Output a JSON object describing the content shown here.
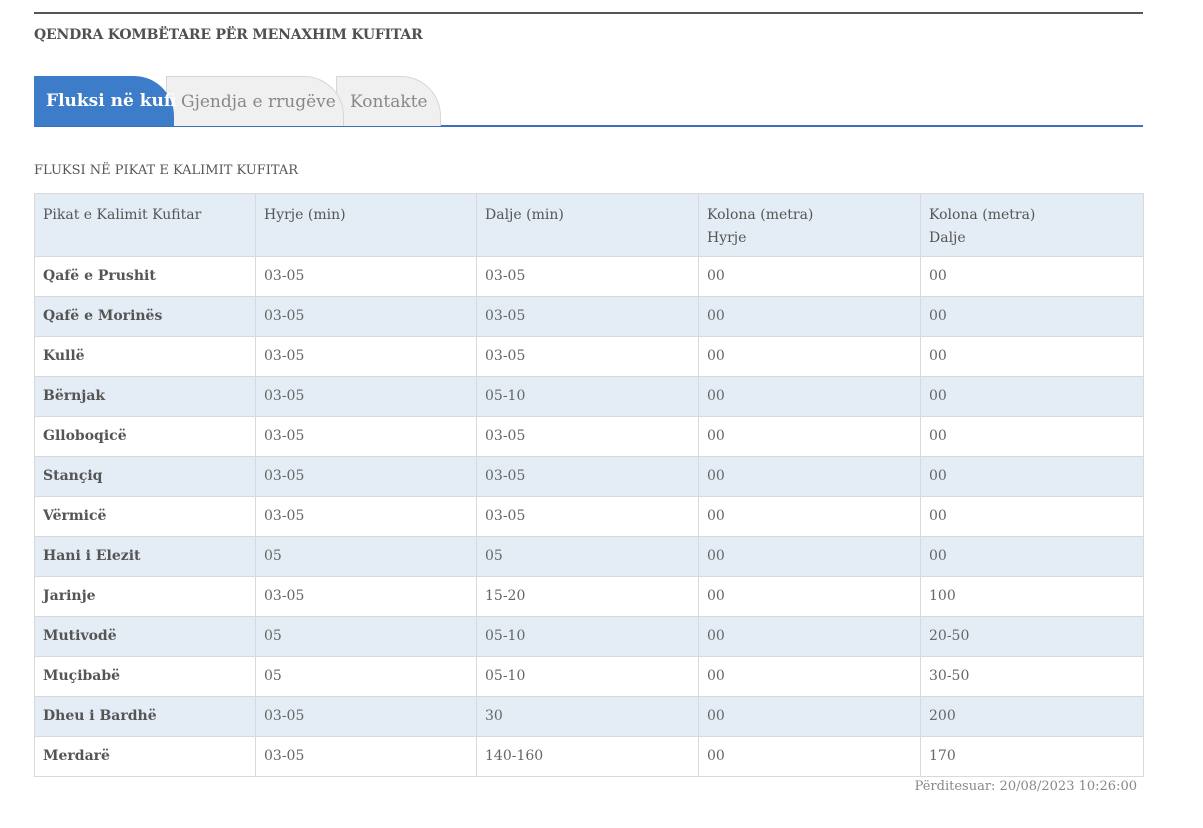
{
  "header": {
    "title": "QENDRA KOMBËTARE PËR MENAXHIM KUFITAR"
  },
  "tabs": [
    {
      "label": "Fluksi në kufi",
      "active": true
    },
    {
      "label": "Gjendja e rrugëve",
      "active": false
    },
    {
      "label": "Kontakte",
      "active": false
    }
  ],
  "section": {
    "title": "FLUKSI NË PIKAT E KALIMIT KUFITAR"
  },
  "table": {
    "headers": [
      {
        "line1": "Pikat e Kalimit Kufitar",
        "line2": ""
      },
      {
        "line1": "Hyrje (min)",
        "line2": ""
      },
      {
        "line1": "Dalje (min)",
        "line2": ""
      },
      {
        "line1": "Kolona (metra)",
        "line2": "Hyrje"
      },
      {
        "line1": "Kolona (metra)",
        "line2": "Dalje"
      }
    ],
    "rows": [
      [
        "Qafë e Prushit",
        "03-05",
        "03-05",
        "00",
        "00"
      ],
      [
        "Qafë e Morinës",
        "03-05",
        "03-05",
        "00",
        "00"
      ],
      [
        "Kullë",
        "03-05",
        "03-05",
        "00",
        "00"
      ],
      [
        "Bërnjak",
        "03-05",
        "05-10",
        "00",
        "00"
      ],
      [
        "Glloboqicë",
        "03-05",
        "03-05",
        "00",
        "00"
      ],
      [
        "Stançiq",
        "03-05",
        "03-05",
        "00",
        "00"
      ],
      [
        "Vërmicë",
        "03-05",
        "03-05",
        "00",
        "00"
      ],
      [
        "Hani i Elezit",
        "05",
        "05",
        "00",
        "00"
      ],
      [
        "Jarinje",
        "03-05",
        "15-20",
        "00",
        "100"
      ],
      [
        "Mutivodë",
        "05",
        "05-10",
        "00",
        "20-50"
      ],
      [
        "Muçibabë",
        "05",
        "05-10",
        "00",
        "30-50"
      ],
      [
        "Dheu i Bardhë",
        "03-05",
        "30",
        "00",
        "200"
      ],
      [
        "Merdarë",
        "03-05",
        "140-160",
        "00",
        "170"
      ]
    ]
  },
  "footer": {
    "updated": "Përditesuar: 20/08/2023 10:26:00"
  },
  "colors": {
    "accent": "#3d7cc9",
    "row_alt": "#e4edf6",
    "border": "#d9d9d9"
  }
}
